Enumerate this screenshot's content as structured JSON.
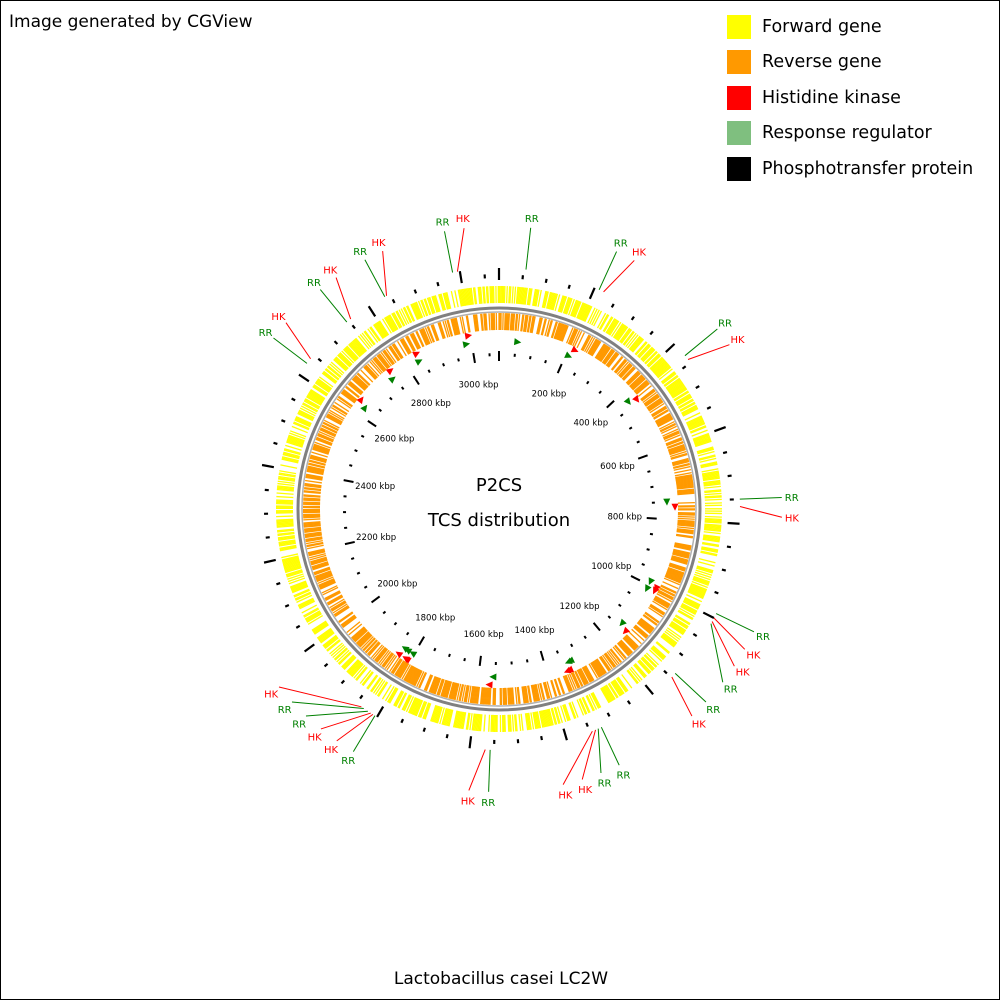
{
  "header": {
    "credit": "Image generated by CGView"
  },
  "legend": {
    "items": [
      {
        "label": "Forward gene",
        "color": "#ffff00"
      },
      {
        "label": "Reverse gene",
        "color": "#ff9900"
      },
      {
        "label": "Histidine kinase",
        "color": "#ff0000"
      },
      {
        "label": "Response regulator",
        "color": "#7fbf7f"
      },
      {
        "label": "Phosphotransfer protein",
        "color": "#000000"
      }
    ]
  },
  "map": {
    "title_line1": "P2CS",
    "title_line2": "TCS distribution",
    "genome_name": "Lactobacillus casei LC2W",
    "genome_length_kbp": 3080,
    "ruler_labels": [
      "200 kbp",
      "400 kbp",
      "600 kbp",
      "800 kbp",
      "1000 kbp",
      "1200 kbp",
      "1400 kbp",
      "1600 kbp",
      "1800 kbp",
      "2000 kbp",
      "2200 kbp",
      "2400 kbp",
      "2600 kbp",
      "2800 kbp",
      "3000 kbp"
    ],
    "colors": {
      "forward": "#ffff00",
      "reverse": "#ff9900",
      "backbone": "#808080",
      "hk": "#ff0000",
      "rr": "#008000",
      "ticks": "#000000"
    },
    "features": [
      {
        "type": "RR",
        "kbp": 55
      },
      {
        "type": "HK",
        "kbp": 2995
      },
      {
        "type": "RR",
        "kbp": 2985
      },
      {
        "type": "RR",
        "kbp": 210
      },
      {
        "type": "HK",
        "kbp": 220
      },
      {
        "type": "HK",
        "kbp": 2842
      },
      {
        "type": "RR",
        "kbp": 2838
      },
      {
        "type": "HK",
        "kbp": 2755
      },
      {
        "type": "RR",
        "kbp": 2745
      },
      {
        "type": "HK",
        "kbp": 2640
      },
      {
        "type": "RR",
        "kbp": 2628
      },
      {
        "type": "HK",
        "kbp": 442
      },
      {
        "type": "RR",
        "kbp": 432
      },
      {
        "type": "RR",
        "kbp": 750
      },
      {
        "type": "HK",
        "kbp": 765
      },
      {
        "type": "RR",
        "kbp": 990
      },
      {
        "type": "HK",
        "kbp": 1000
      },
      {
        "type": "HK",
        "kbp": 1008
      },
      {
        "type": "RR",
        "kbp": 1013
      },
      {
        "type": "RR",
        "kbp": 1138
      },
      {
        "type": "HK",
        "kbp": 1148
      },
      {
        "type": "RR",
        "kbp": 1325
      },
      {
        "type": "RR",
        "kbp": 1332
      },
      {
        "type": "HK",
        "kbp": 1338
      },
      {
        "type": "HK",
        "kbp": 1345
      },
      {
        "type": "RR",
        "kbp": 1558
      },
      {
        "type": "HK",
        "kbp": 1568
      },
      {
        "type": "HK",
        "kbp": 1838
      },
      {
        "type": "RR",
        "kbp": 1832
      },
      {
        "type": "RR",
        "kbp": 1822
      },
      {
        "type": "HK",
        "kbp": 1815
      },
      {
        "type": "HK",
        "kbp": 1810
      },
      {
        "type": "RR",
        "kbp": 1805
      }
    ],
    "labels": [
      {
        "text": "RR",
        "type": "RR",
        "anchor_kbp": 55
      },
      {
        "text": "HK",
        "type": "HK",
        "anchor_kbp": 2995
      },
      {
        "text": "RR",
        "type": "RR",
        "anchor_kbp": 2985
      },
      {
        "text": "RR",
        "type": "RR",
        "anchor_kbp": 210
      },
      {
        "text": "HK",
        "type": "HK",
        "anchor_kbp": 220
      },
      {
        "text": "RR",
        "type": "RR",
        "anchor_kbp": 2838
      },
      {
        "text": "HK",
        "type": "HK",
        "anchor_kbp": 2842
      },
      {
        "text": "HK",
        "type": "HK",
        "anchor_kbp": 2755
      },
      {
        "text": "RR",
        "type": "RR",
        "anchor_kbp": 2745
      },
      {
        "text": "RR",
        "type": "RR",
        "anchor_kbp": 2628
      },
      {
        "text": "HK",
        "type": "HK",
        "anchor_kbp": 2640
      },
      {
        "text": "RR",
        "type": "RR",
        "anchor_kbp": 432
      },
      {
        "text": "HK",
        "type": "HK",
        "anchor_kbp": 442
      },
      {
        "text": "RR",
        "type": "RR",
        "anchor_kbp": 750
      },
      {
        "text": "HK",
        "type": "HK",
        "anchor_kbp": 765
      },
      {
        "text": "RR",
        "type": "RR",
        "anchor_kbp": 990
      },
      {
        "text": "HK",
        "type": "HK",
        "anchor_kbp": 1000
      },
      {
        "text": "RR",
        "type": "RR",
        "anchor_kbp": 1013
      },
      {
        "text": "HK",
        "type": "HK",
        "anchor_kbp": 1008
      },
      {
        "text": "RR",
        "type": "RR",
        "anchor_kbp": 1138
      },
      {
        "text": "HK",
        "type": "HK",
        "anchor_kbp": 1148
      },
      {
        "text": "HK",
        "type": "HK",
        "anchor_kbp": 1345
      },
      {
        "text": "RR",
        "type": "RR",
        "anchor_kbp": 1332
      },
      {
        "text": "RR",
        "type": "RR",
        "anchor_kbp": 1325
      },
      {
        "text": "HK",
        "type": "HK",
        "anchor_kbp": 1338
      },
      {
        "text": "RR",
        "type": "RR",
        "anchor_kbp": 1558
      },
      {
        "text": "HK",
        "type": "HK",
        "anchor_kbp": 1568
      },
      {
        "text": "HK",
        "type": "HK",
        "anchor_kbp": 1838
      },
      {
        "text": "RR",
        "type": "RR",
        "anchor_kbp": 1832
      },
      {
        "text": "RR",
        "type": "RR",
        "anchor_kbp": 1822
      },
      {
        "text": "HK",
        "type": "HK",
        "anchor_kbp": 1815
      },
      {
        "text": "HK",
        "type": "HK",
        "anchor_kbp": 1810
      },
      {
        "text": "RR",
        "type": "RR",
        "anchor_kbp": 1805
      }
    ]
  }
}
